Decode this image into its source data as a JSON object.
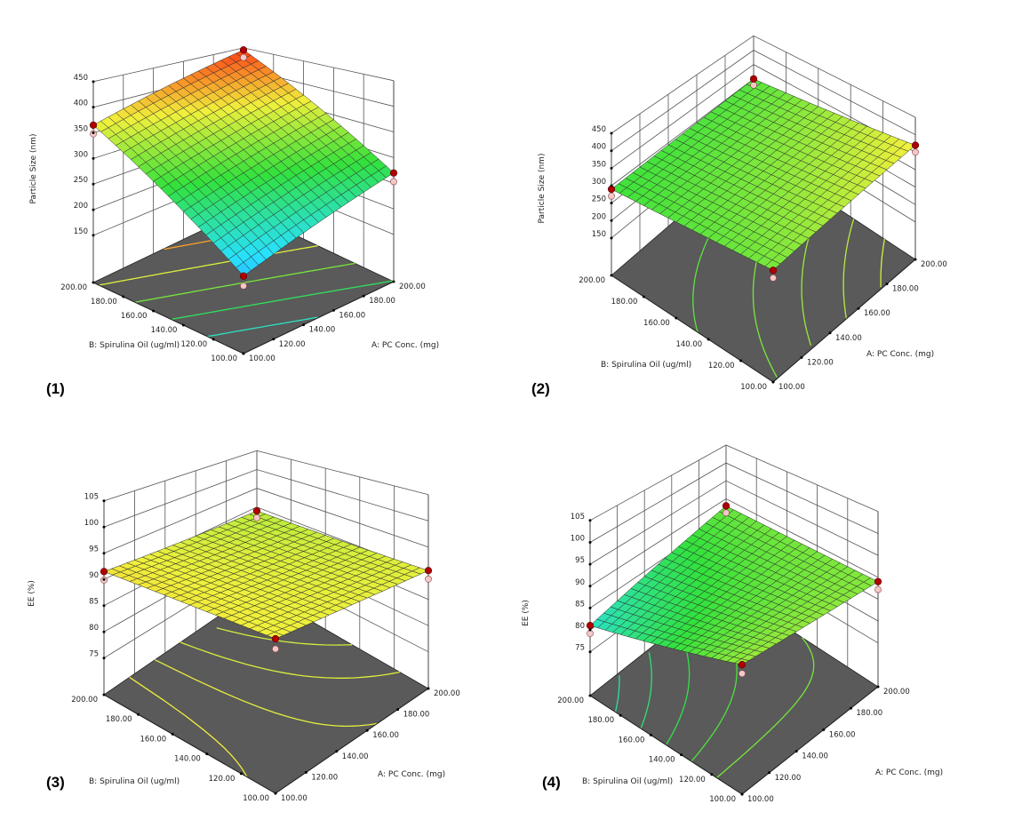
{
  "chart_data": [
    {
      "type": "surface",
      "panel_label": "(1)",
      "xlabel": "A: PC Conc. (mg)",
      "ylabel": "B: Spirulina Oil (ug/ml)",
      "zlabel": "Particle Size (nm)",
      "x_ticks": [
        "100.00",
        "120.00",
        "140.00",
        "160.00",
        "180.00",
        "200.00"
      ],
      "y_ticks": [
        "100.00",
        "120.00",
        "140.00",
        "160.00",
        "180.00",
        "200.00"
      ],
      "z_ticks": [
        "150",
        "200",
        "250",
        "300",
        "350",
        "400",
        "450"
      ],
      "xlim": [
        100,
        200
      ],
      "ylim": [
        100,
        200
      ],
      "zlim": [
        58,
        450
      ],
      "color_range": [
        120,
        450
      ],
      "surface_corners": {
        "A100_B100": 185,
        "A200_B100": 270,
        "A100_B200": 365,
        "A200_B200": 445
      }
    },
    {
      "type": "surface",
      "panel_label": "(2)",
      "xlabel": "A: PC Conc. (mg)",
      "ylabel": "B: Spirulina Oil (ug/ml)",
      "zlabel": "Particle Size (nm)",
      "x_ticks": [
        "100.00",
        "120.00",
        "140.00",
        "160.00",
        "180.00",
        "200.00"
      ],
      "y_ticks": [
        "100.00",
        "120.00",
        "140.00",
        "160.00",
        "180.00",
        "200.00"
      ],
      "z_ticks": [
        "150",
        "200",
        "250",
        "300",
        "350",
        "400",
        "450"
      ],
      "xlim": [
        100,
        200
      ],
      "ylim": [
        100,
        200
      ],
      "zlim": [
        43,
        450
      ],
      "color_range": [
        120,
        450
      ],
      "surface_corners": {
        "A100_B100": 315,
        "A200_B100": 370,
        "A100_B200": 290,
        "A200_B200": 300
      }
    },
    {
      "type": "surface",
      "panel_label": "(3)",
      "xlabel": "A: PC Conc. (mg)",
      "ylabel": "B: Spirulina Oil (ug/ml)",
      "zlabel": "EE (%)",
      "x_ticks": [
        "100.00",
        "120.00",
        "140.00",
        "160.00",
        "180.00",
        "200.00"
      ],
      "y_ticks": [
        "100.00",
        "120.00",
        "140.00",
        "160.00",
        "180.00",
        "200.00"
      ],
      "z_ticks": [
        "75",
        "80",
        "85",
        "90",
        "95",
        "100",
        "105"
      ],
      "xlim": [
        100,
        200
      ],
      "ylim": [
        100,
        200
      ],
      "zlim": [
        68,
        105
      ],
      "color_range": [
        70,
        98
      ],
      "surface_corners": {
        "A100_B100": 91,
        "A200_B100": 90.5,
        "A100_B200": 91.5,
        "A200_B200": 89
      }
    },
    {
      "type": "surface",
      "panel_label": "(4)",
      "xlabel": "A: PC Conc. (mg)",
      "ylabel": "B: Spirulina Oil (ug/ml)",
      "zlabel": "EE (%)",
      "x_ticks": [
        "100.00",
        "120.00",
        "140.00",
        "160.00",
        "180.00",
        "200.00"
      ],
      "y_ticks": [
        "100.00",
        "120.00",
        "140.00",
        "160.00",
        "180.00",
        "200.00"
      ],
      "z_ticks": [
        "75",
        "80",
        "85",
        "90",
        "95",
        "100",
        "105"
      ],
      "xlim": [
        100,
        200
      ],
      "ylim": [
        100,
        200
      ],
      "zlim": [
        65,
        105
      ],
      "color_range": [
        72,
        100
      ],
      "surface_corners": {
        "A100_B100": 90,
        "A200_B100": 89,
        "A100_B200": 81,
        "A200_B200": 88
      }
    }
  ],
  "colors": {
    "floor": "#5a5a5a",
    "wall_line": "#555555",
    "design_point": "#b00000",
    "design_point_below": "#f4c8c8"
  }
}
